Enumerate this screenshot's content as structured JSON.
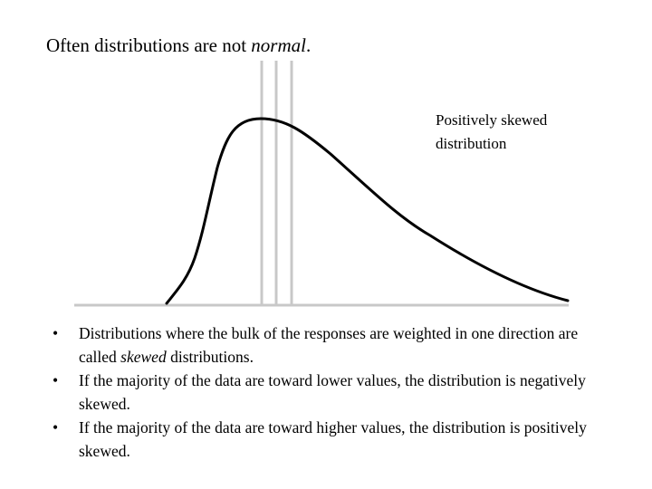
{
  "title": {
    "text_before": "Often distributions are not ",
    "text_emph": "normal",
    "text_after": "."
  },
  "diagram": {
    "label_line1": "Positively skewed",
    "label_line2": "distribution",
    "colors": {
      "curve": "#000000",
      "baseline": "#c8c8c8",
      "marker_lines": "#c8c8c8"
    }
  },
  "bullets": [
    {
      "marker": "•",
      "before": "Distributions where the bulk of the responses are weighted in one direction are called ",
      "emph": "skewed",
      "after": " distributions."
    },
    {
      "marker": "•",
      "before": "If the majority of the data are toward lower values, the distribution is negatively skewed.",
      "emph": "",
      "after": ""
    },
    {
      "marker": "•",
      "before": "If the majority of the data are toward higher values, the distribution is positively skewed.",
      "emph": "",
      "after": ""
    }
  ]
}
